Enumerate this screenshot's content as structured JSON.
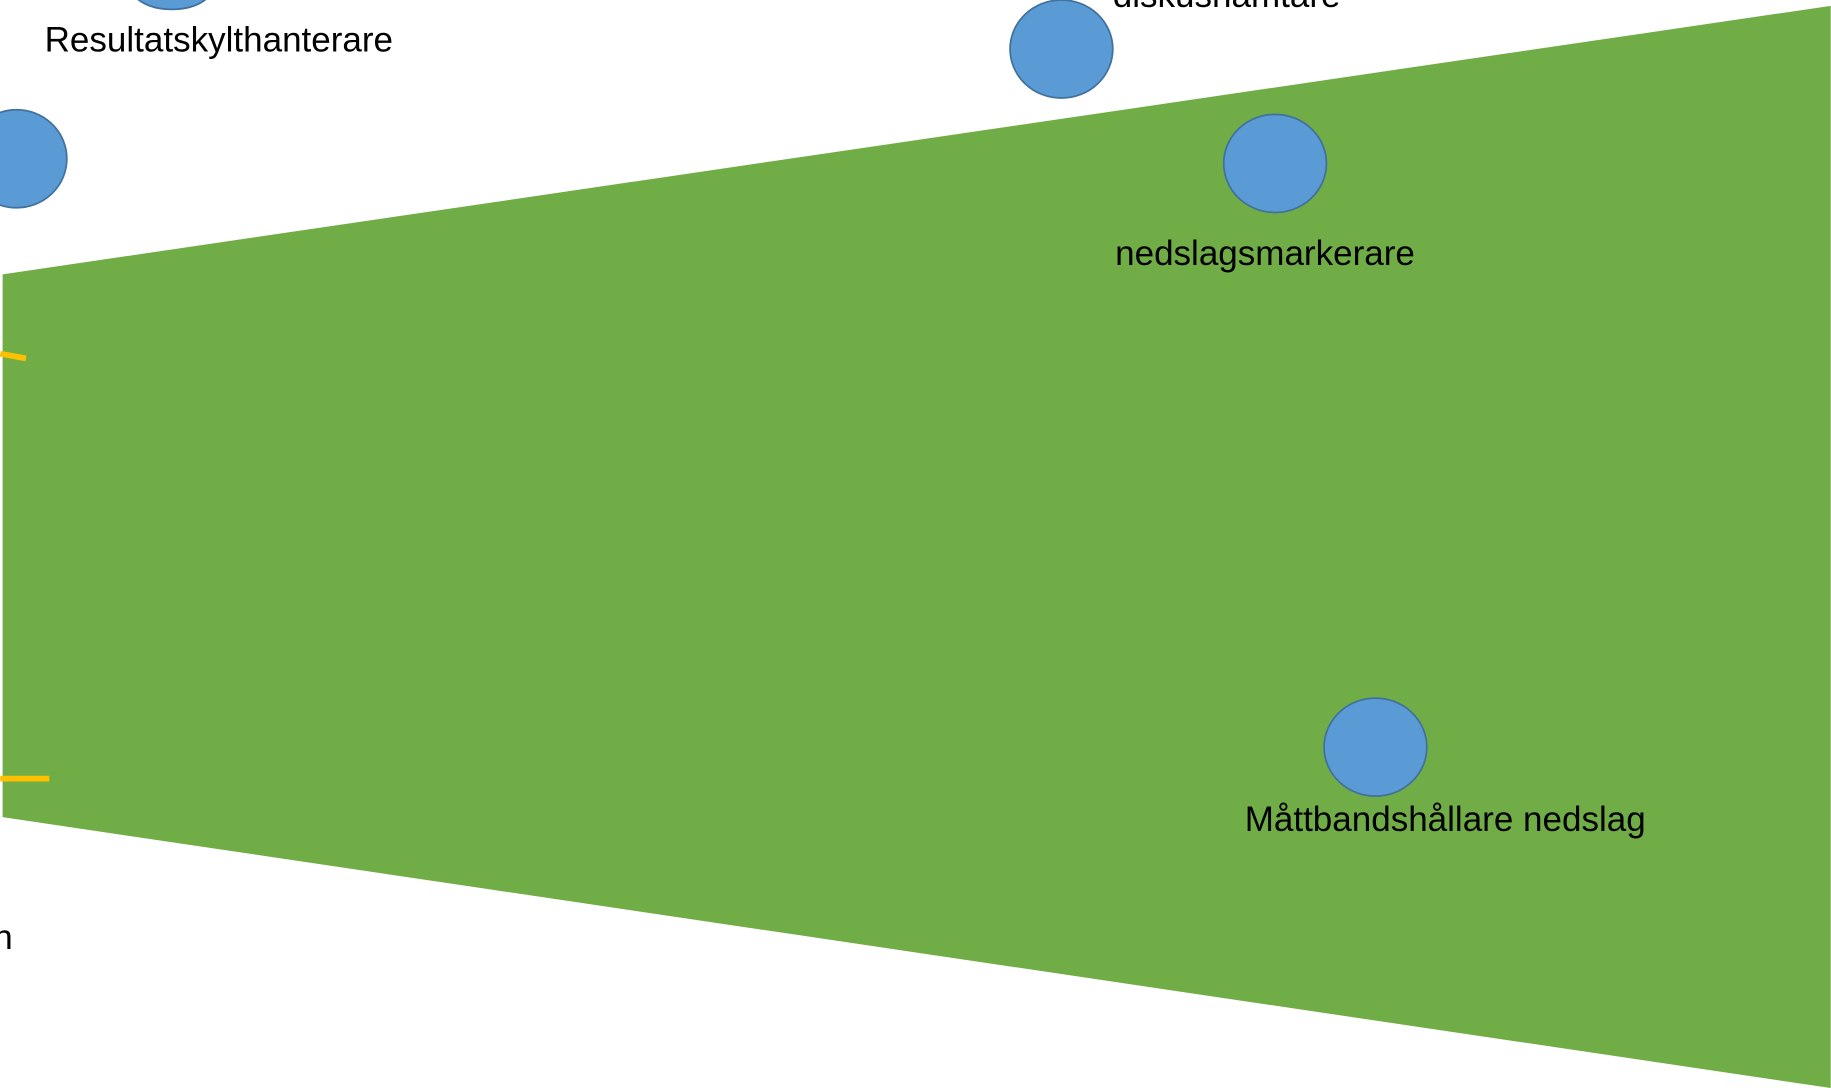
{
  "labels": [
    "Resultatskylthanterare",
    "diskushämtare",
    "nedslagsmarkerare",
    "Måttbandshållare nedslag",
    "n"
  ]
}
